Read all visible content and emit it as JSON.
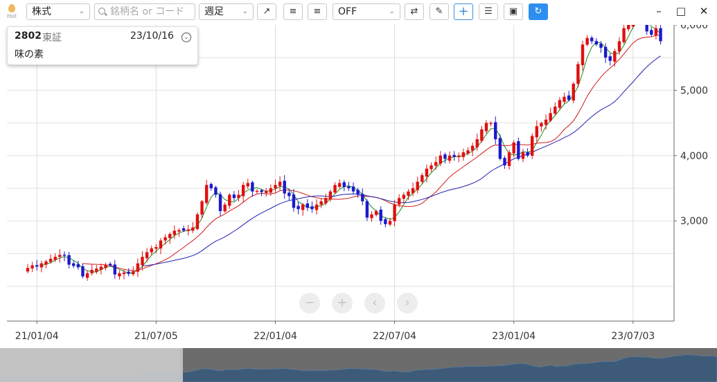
{
  "toolbar": {
    "hot_label": "Hot",
    "market_select": "株式",
    "search_placeholder": "銘柄名 or コード",
    "period_select": "週足",
    "indicator_select": "OFF",
    "tools": [
      "trend-line-icon",
      "align-left-icon",
      "align-right-icon",
      "shuffle-icon",
      "pencil-icon",
      "crosshair-icon",
      "settings-sliders-icon",
      "camera-icon",
      "refresh-icon"
    ],
    "window": {
      "minimize": "–",
      "maximize": "□",
      "close": "✕"
    }
  },
  "info": {
    "code": "2802",
    "exchange": "東証",
    "date": "23/10/16",
    "name": "味の素"
  },
  "chart_controls": {
    "zoom_out": "−",
    "zoom_in": "+",
    "prev": "‹",
    "next": "›"
  },
  "chart_data": {
    "type": "candlestick",
    "ylim": [
      2000,
      6500
    ],
    "yticks": [
      "3,000",
      "4,000",
      "5,000",
      "6,000"
    ],
    "xticks": [
      "21/01/04",
      "21/07/05",
      "22/01/04",
      "22/07/04",
      "23/01/04",
      "23/07/03"
    ],
    "colors": {
      "up": "#e01010",
      "down": "#1a1acc",
      "ma_short": "#1a8a1a",
      "ma_mid": "#d01818",
      "ma_long": "#2020b0"
    },
    "legend": "none",
    "grid": true,
    "x_first_week": "2020-12-21",
    "closes": [
      2280,
      2320,
      2300,
      2350,
      2380,
      2420,
      2450,
      2480,
      2470,
      2330,
      2310,
      2290,
      2150,
      2200,
      2250,
      2270,
      2300,
      2330,
      2320,
      2180,
      2200,
      2210,
      2190,
      2230,
      2350,
      2450,
      2520,
      2580,
      2600,
      2700,
      2750,
      2800,
      2850,
      2860,
      2850,
      2870,
      2900,
      3100,
      3300,
      3550,
      3500,
      3400,
      3150,
      3250,
      3400,
      3350,
      3400,
      3550,
      3580,
      3450,
      3460,
      3440,
      3460,
      3500,
      3550,
      3600,
      3420,
      3380,
      3200,
      3180,
      3250,
      3200,
      3180,
      3250,
      3300,
      3350,
      3450,
      3550,
      3580,
      3520,
      3500,
      3450,
      3400,
      3300,
      3050,
      3100,
      3150,
      3000,
      2950,
      3000,
      3250,
      3350,
      3400,
      3450,
      3500,
      3600,
      3700,
      3800,
      3850,
      3900,
      4000,
      3950,
      4000,
      3980,
      4000,
      4050,
      4080,
      4150,
      4250,
      4400,
      4500,
      4500,
      4250,
      3950,
      3850,
      4050,
      4200,
      3950,
      4050,
      4000,
      4300,
      4450,
      4500,
      4550,
      4650,
      4750,
      4850,
      4900,
      4850,
      5100,
      5400,
      5700,
      5800,
      5750,
      5700,
      5650,
      5500,
      5450,
      5600,
      5750,
      5950,
      6000,
      6150,
      6100,
      6050,
      5900,
      5850,
      5950,
      5750
    ]
  }
}
